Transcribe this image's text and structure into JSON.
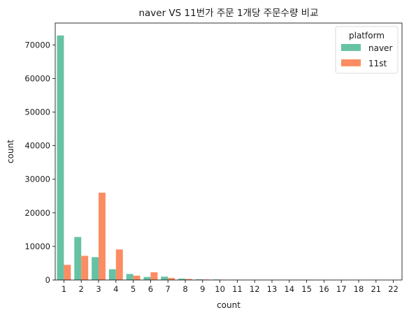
{
  "chart_data": {
    "type": "bar",
    "title": "naver VS 11번가 주문 1개당 주문수량 비교",
    "xlabel": "count",
    "ylabel": "count",
    "categories": [
      "1",
      "2",
      "3",
      "4",
      "5",
      "6",
      "7",
      "8",
      "9",
      "10",
      "11",
      "12",
      "13",
      "14",
      "15",
      "16",
      "17",
      "18",
      "21",
      "22"
    ],
    "series": [
      {
        "name": "naver",
        "color": "#66c2a5",
        "values": [
          72800,
          12800,
          6800,
          3200,
          1800,
          900,
          1000,
          400,
          200,
          150,
          100,
          30,
          20,
          10,
          10,
          5,
          5,
          5,
          5,
          5
        ]
      },
      {
        "name": "11st",
        "color": "#fc8d62",
        "values": [
          4500,
          7200,
          26000,
          9100,
          1300,
          2300,
          600,
          300,
          150,
          100,
          50,
          20,
          10,
          5,
          5,
          3,
          3,
          2,
          2,
          2
        ]
      }
    ],
    "ylim": [
      0,
      76500
    ],
    "yticks": [
      0,
      10000,
      20000,
      30000,
      40000,
      50000,
      60000,
      70000
    ],
    "legend": {
      "title": "platform",
      "position": "top-right"
    },
    "grid": false
  }
}
